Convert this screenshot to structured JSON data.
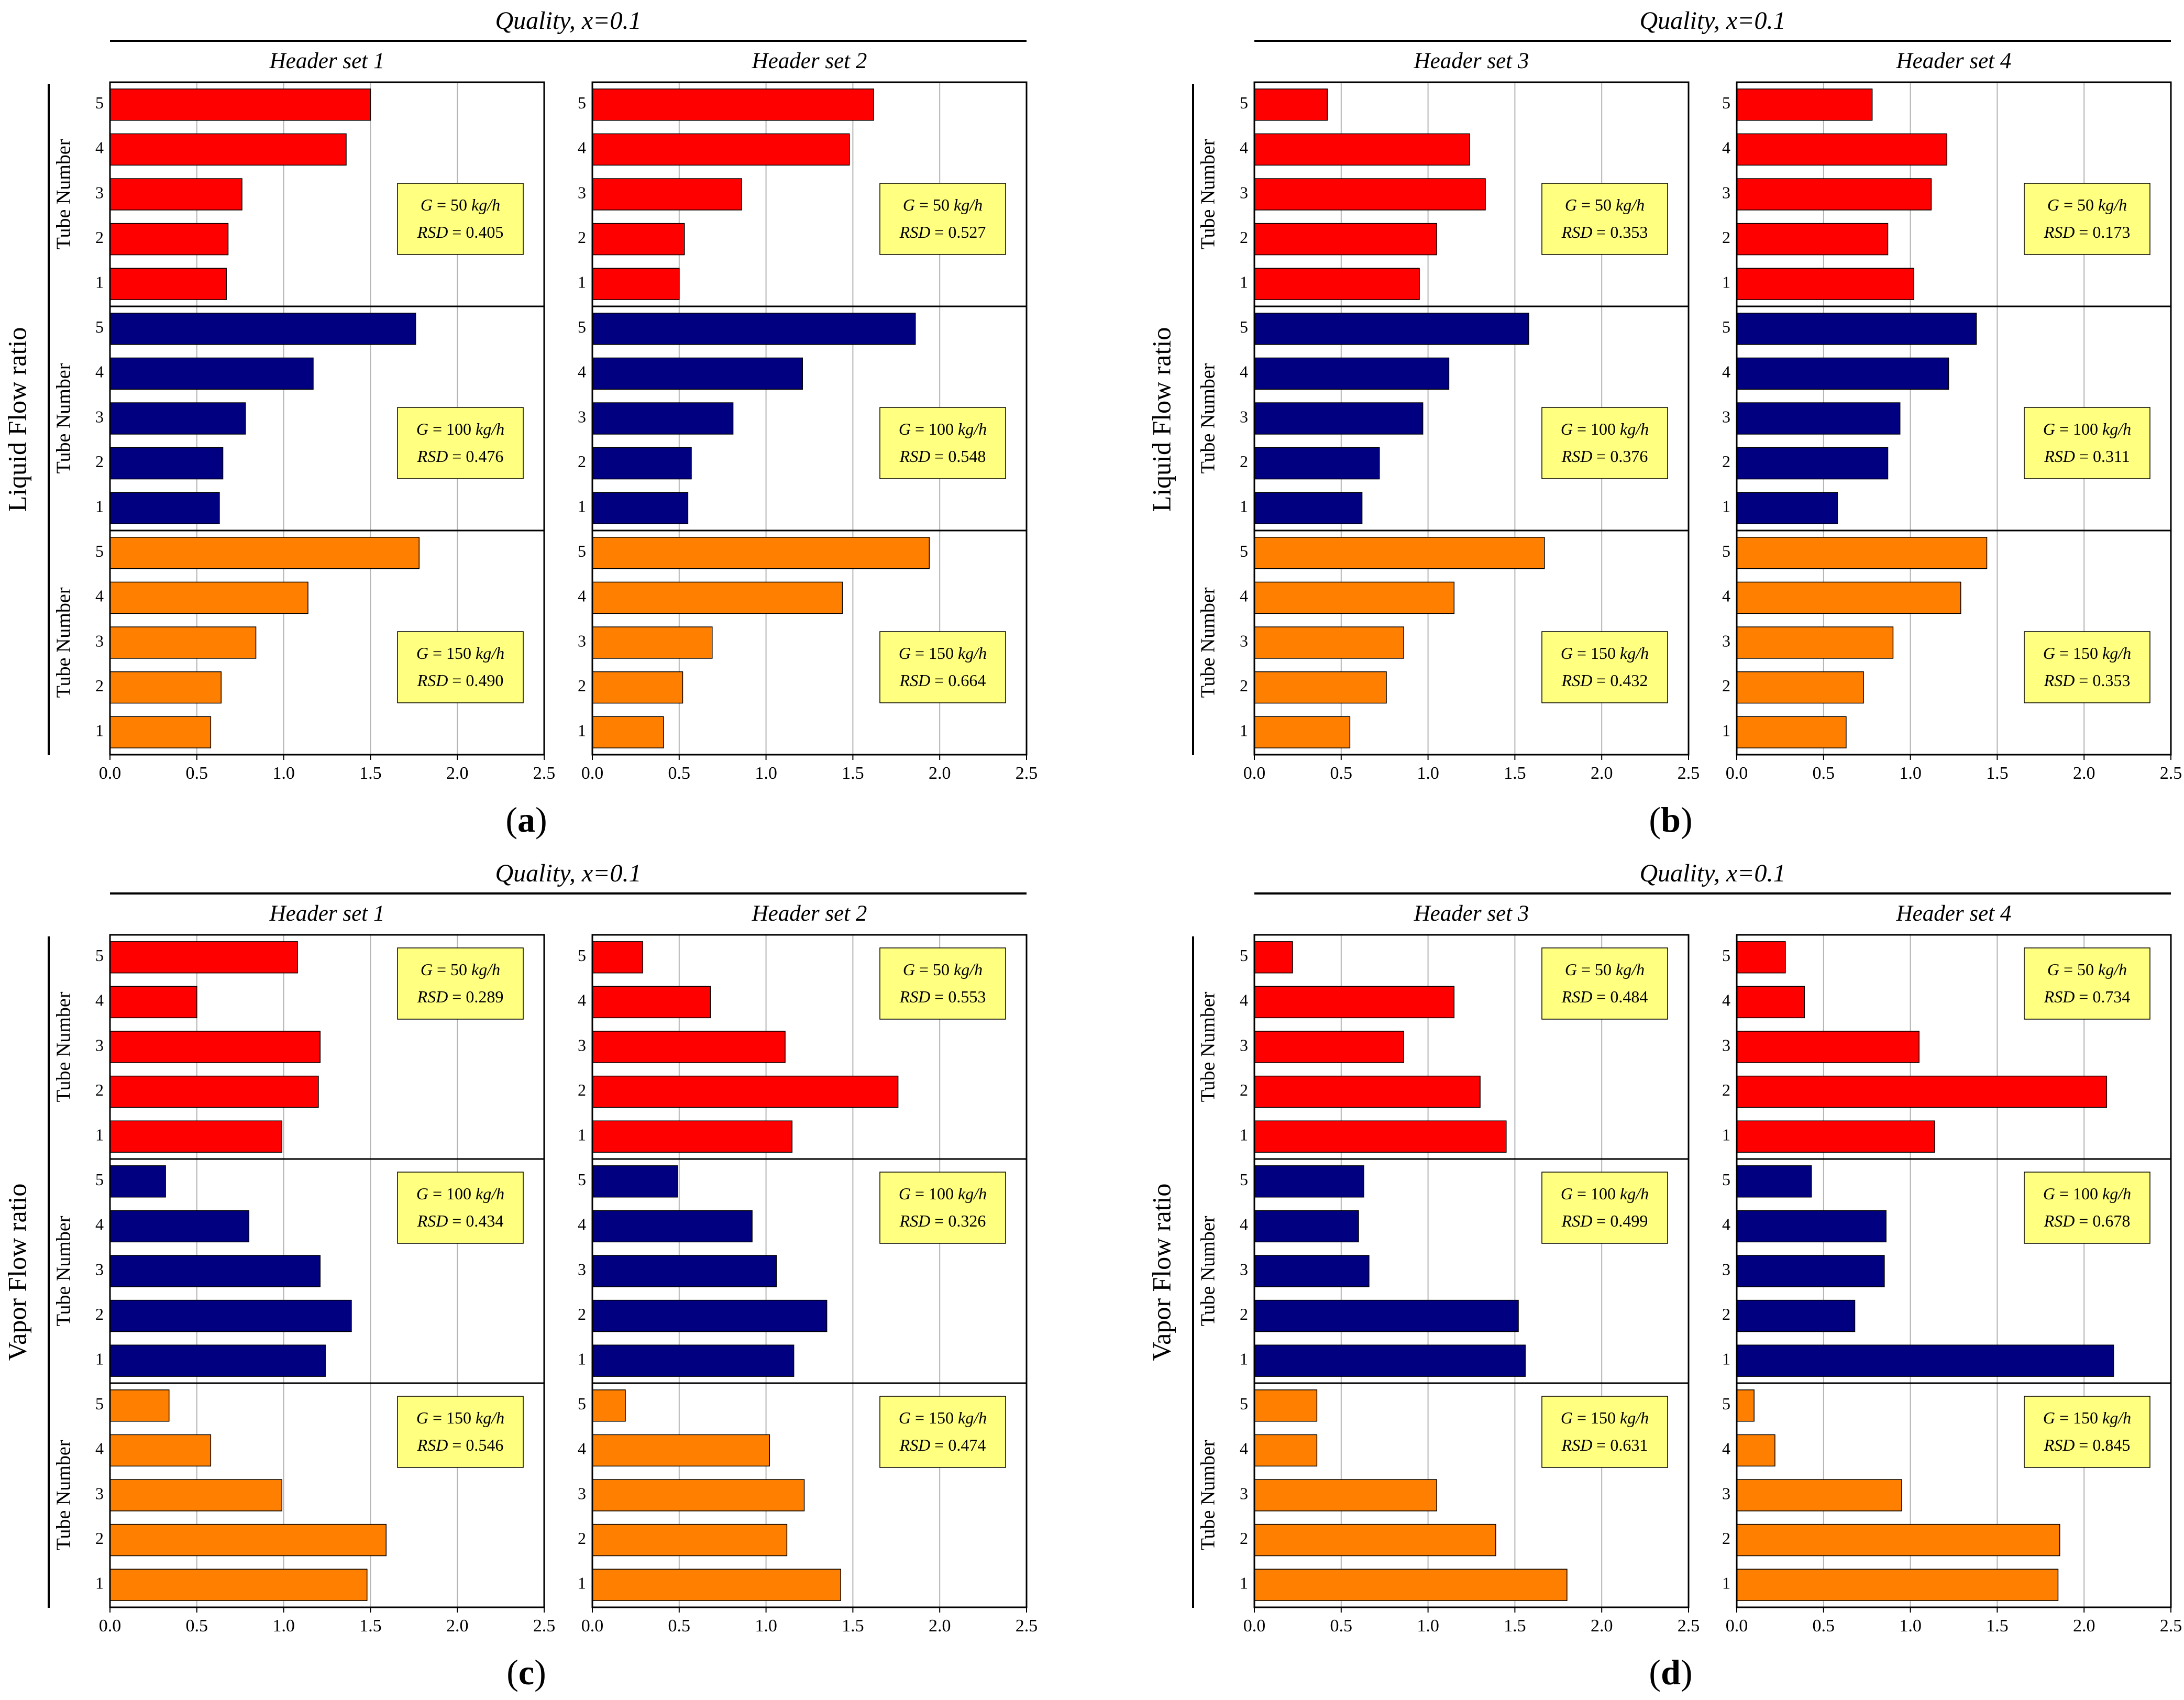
{
  "colors": {
    "G50": "#ff0000",
    "G100": "#000080",
    "G150": "#ff8000",
    "annotation_bg": "#ffff80",
    "grid": "#b4b4b4"
  },
  "common": {
    "ylabel": "Tube Number",
    "tube_numbers": [
      "1",
      "2",
      "3",
      "4",
      "5"
    ],
    "x_ticks": [
      "0.0",
      "0.5",
      "1.0",
      "1.5",
      "2.0",
      "2.5"
    ],
    "xlim": [
      0,
      2.5
    ],
    "g_labels": [
      "50",
      "100",
      "150"
    ],
    "g_unit": "kg/h",
    "g_symbol": "G",
    "rsd_label": "RSD"
  },
  "chart_data": [
    {
      "id": "a",
      "type": "bar",
      "letter": "a",
      "quality_title": "Quality, x=0.1",
      "side_label": "Liquid Flow ratio",
      "headers": [
        {
          "title": "Header set 1",
          "rows": [
            {
              "G": "50",
              "RSD": "0.405",
              "values": [
                0.67,
                0.68,
                0.76,
                1.36,
                1.5
              ]
            },
            {
              "G": "100",
              "RSD": "0.476",
              "values": [
                0.63,
                0.65,
                0.78,
                1.17,
                1.76
              ]
            },
            {
              "G": "150",
              "RSD": "0.490",
              "values": [
                0.58,
                0.64,
                0.84,
                1.14,
                1.78
              ]
            }
          ]
        },
        {
          "title": "Header set 2",
          "rows": [
            {
              "G": "50",
              "RSD": "0.527",
              "values": [
                0.5,
                0.53,
                0.86,
                1.48,
                1.62
              ]
            },
            {
              "G": "100",
              "RSD": "0.548",
              "values": [
                0.55,
                0.57,
                0.81,
                1.21,
                1.86
              ]
            },
            {
              "G": "150",
              "RSD": "0.664",
              "values": [
                0.41,
                0.52,
                0.69,
                1.44,
                1.94
              ]
            }
          ]
        }
      ]
    },
    {
      "id": "b",
      "type": "bar",
      "letter": "b",
      "quality_title": "Quality, x=0.1",
      "side_label": "Liquid Flow ratio",
      "headers": [
        {
          "title": "Header set 3",
          "rows": [
            {
              "G": "50",
              "RSD": "0.353",
              "values": [
                0.95,
                1.05,
                1.33,
                1.24,
                0.42
              ]
            },
            {
              "G": "100",
              "RSD": "0.376",
              "values": [
                0.62,
                0.72,
                0.97,
                1.12,
                1.58
              ]
            },
            {
              "G": "150",
              "RSD": "0.432",
              "values": [
                0.55,
                0.76,
                0.86,
                1.15,
                1.67
              ]
            }
          ]
        },
        {
          "title": "Header set 4",
          "rows": [
            {
              "G": "50",
              "RSD": "0.173",
              "values": [
                1.02,
                0.87,
                1.12,
                1.21,
                0.78
              ]
            },
            {
              "G": "100",
              "RSD": "0.311",
              "values": [
                0.58,
                0.87,
                0.94,
                1.22,
                1.38
              ]
            },
            {
              "G": "150",
              "RSD": "0.353",
              "values": [
                0.63,
                0.73,
                0.9,
                1.29,
                1.44
              ]
            }
          ]
        }
      ]
    },
    {
      "id": "c",
      "type": "bar",
      "letter": "c",
      "quality_title": "Quality, x=0.1",
      "side_label": "Vapor Flow ratio",
      "headers": [
        {
          "title": "Header set 1",
          "rows": [
            {
              "G": "50",
              "RSD": "0.289",
              "values": [
                0.99,
                1.2,
                1.21,
                0.5,
                1.08
              ]
            },
            {
              "G": "100",
              "RSD": "0.434",
              "values": [
                1.24,
                1.39,
                1.21,
                0.8,
                0.32
              ]
            },
            {
              "G": "150",
              "RSD": "0.546",
              "values": [
                1.48,
                1.59,
                0.99,
                0.58,
                0.34
              ]
            }
          ]
        },
        {
          "title": "Header set 2",
          "rows": [
            {
              "G": "50",
              "RSD": "0.553",
              "values": [
                1.15,
                1.76,
                1.11,
                0.68,
                0.29
              ]
            },
            {
              "G": "100",
              "RSD": "0.326",
              "values": [
                1.16,
                1.35,
                1.06,
                0.92,
                0.49
              ]
            },
            {
              "G": "150",
              "RSD": "0.474",
              "values": [
                1.43,
                1.12,
                1.22,
                1.02,
                0.19
              ]
            }
          ]
        }
      ]
    },
    {
      "id": "d",
      "type": "bar",
      "letter": "d",
      "quality_title": "Quality, x=0.1",
      "side_label": "Vapor Flow ratio",
      "headers": [
        {
          "title": "Header set 3",
          "rows": [
            {
              "G": "50",
              "RSD": "0.484",
              "values": [
                1.45,
                1.3,
                0.86,
                1.15,
                0.22
              ]
            },
            {
              "G": "100",
              "RSD": "0.499",
              "values": [
                1.56,
                1.52,
                0.66,
                0.6,
                0.63
              ]
            },
            {
              "G": "150",
              "RSD": "0.631",
              "values": [
                1.8,
                1.39,
                1.05,
                0.36,
                0.36
              ]
            }
          ]
        },
        {
          "title": "Header set 4",
          "rows": [
            {
              "G": "50",
              "RSD": "0.734",
              "values": [
                1.14,
                2.13,
                1.05,
                0.39,
                0.28
              ]
            },
            {
              "G": "100",
              "RSD": "0.678",
              "values": [
                2.17,
                0.68,
                0.85,
                0.86,
                0.43
              ]
            },
            {
              "G": "150",
              "RSD": "0.845",
              "values": [
                1.85,
                1.86,
                0.95,
                0.22,
                0.1
              ]
            }
          ]
        }
      ]
    }
  ]
}
